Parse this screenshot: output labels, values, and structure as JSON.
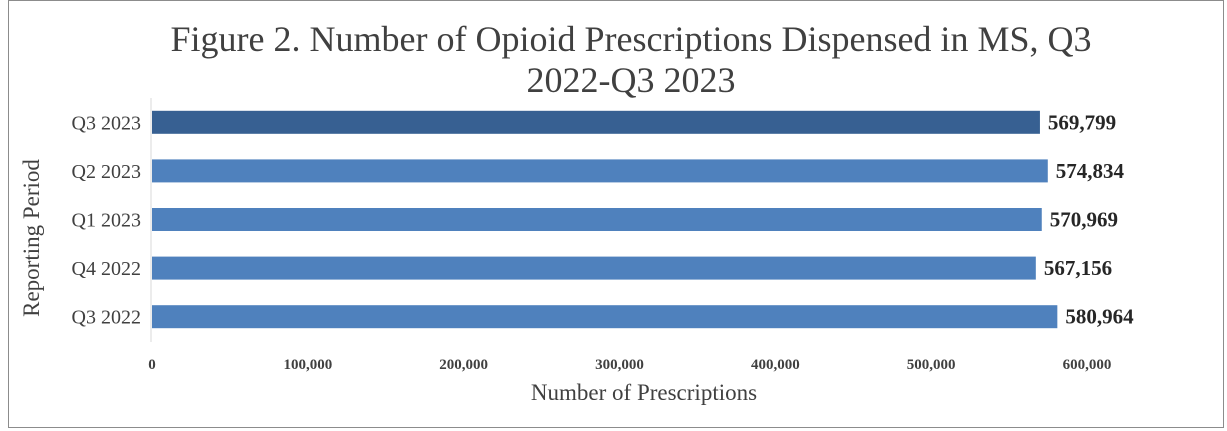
{
  "chart_data": {
    "type": "bar",
    "orientation": "horizontal",
    "title_lines": [
      "Figure 2. Number of Opioid Prescriptions Dispensed in MS, Q3",
      "2022-Q3 2023"
    ],
    "categories": [
      "Q3 2023",
      "Q2 2023",
      "Q1 2023",
      "Q4 2022",
      "Q3 2022"
    ],
    "values": [
      569799,
      574834,
      570969,
      567156,
      580964
    ],
    "data_labels": [
      "569,799",
      "574,834",
      "570,969",
      "567,156",
      "580,964"
    ],
    "bar_colors": [
      "#376092",
      "#4f81bd",
      "#4f81bd",
      "#4f81bd",
      "#4f81bd"
    ],
    "xlabel": "Number of Prescriptions",
    "ylabel": "Reporting Period",
    "xlim": [
      0,
      600000
    ],
    "x_ticks": [
      0,
      100000,
      200000,
      300000,
      400000,
      500000,
      600000
    ],
    "x_tick_labels": [
      "0",
      "100,000",
      "200,000",
      "300,000",
      "400,000",
      "500,000",
      "600,000"
    ],
    "grid": false,
    "legend": "none"
  }
}
